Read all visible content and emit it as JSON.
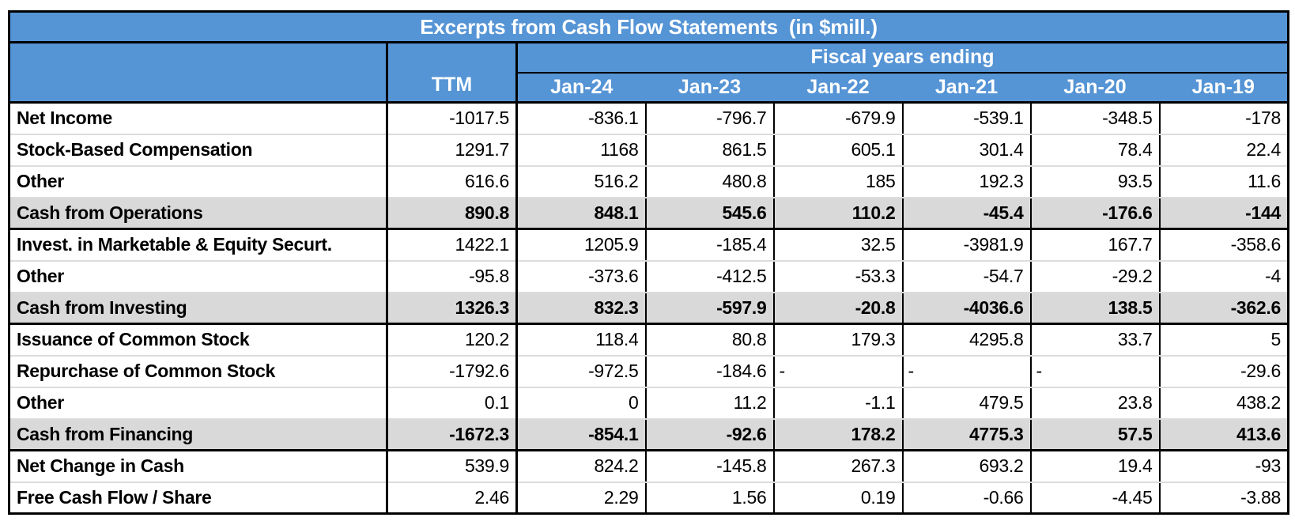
{
  "chart_data": {
    "type": "table",
    "title": "Excerpts from Cash Flow Statements  (in $mill.)",
    "column_group_label": "Fiscal years ending",
    "columns": [
      "",
      "TTM",
      "Jan-24",
      "Jan-23",
      "Jan-22",
      "Jan-21",
      "Jan-20",
      "Jan-19"
    ],
    "rows": [
      {
        "label": "Net Income",
        "values": [
          "-1017.5",
          "-836.1",
          "-796.7",
          "-679.9",
          "-539.1",
          "-348.5",
          "-178"
        ],
        "style": "normal"
      },
      {
        "label": "Stock-Based Compensation",
        "values": [
          "1291.7",
          "1168",
          "861.5",
          "605.1",
          "301.4",
          "78.4",
          "22.4"
        ],
        "style": "normal"
      },
      {
        "label": "Other",
        "values": [
          "616.6",
          "516.2",
          "480.8",
          "185",
          "192.3",
          "93.5",
          "11.6"
        ],
        "style": "normal"
      },
      {
        "label": "Cash from Operations",
        "values": [
          "890.8",
          "848.1",
          "545.6",
          "110.2",
          "-45.4",
          "-176.6",
          "-144"
        ],
        "style": "summary"
      },
      {
        "label": "Invest. in Marketable & Equity Securt.",
        "values": [
          "1422.1",
          "1205.9",
          "-185.4",
          "32.5",
          "-3981.9",
          "167.7",
          "-358.6"
        ],
        "style": "normal"
      },
      {
        "label": "Other",
        "values": [
          "-95.8",
          "-373.6",
          "-412.5",
          "-53.3",
          "-54.7",
          "-29.2",
          "-4"
        ],
        "style": "normal"
      },
      {
        "label": "Cash from Investing",
        "values": [
          "1326.3",
          "832.3",
          "-597.9",
          "-20.8",
          "-4036.6",
          "138.5",
          "-362.6"
        ],
        "style": "summary"
      },
      {
        "label": "Issuance of Common Stock",
        "values": [
          "120.2",
          "118.4",
          "80.8",
          "179.3",
          "4295.8",
          "33.7",
          "5"
        ],
        "style": "normal"
      },
      {
        "label": "Repurchase of Common Stock",
        "values": [
          "-1792.6",
          "-972.5",
          "-184.6",
          "-",
          "-",
          "-",
          "-29.6"
        ],
        "style": "normal"
      },
      {
        "label": "Other",
        "values": [
          "0.1",
          "0",
          "11.2",
          "-1.1",
          "479.5",
          "23.8",
          "438.2"
        ],
        "style": "normal"
      },
      {
        "label": "Cash from Financing",
        "values": [
          "-1672.3",
          "-854.1",
          "-92.6",
          "178.2",
          "4775.3",
          "57.5",
          "413.6"
        ],
        "style": "summary"
      },
      {
        "label": "Net Change in Cash",
        "values": [
          "539.9",
          "824.2",
          "-145.8",
          "267.3",
          "693.2",
          "19.4",
          "-93"
        ],
        "style": "normal"
      },
      {
        "label": "Free Cash Flow / Share",
        "values": [
          "2.46",
          "2.29",
          "1.56",
          "0.19",
          "-0.66",
          "-4.45",
          "-3.88"
        ],
        "style": "normal"
      }
    ]
  },
  "colors": {
    "header_blue": "#5594D5",
    "summary_gray": "#D9D9D9",
    "grid_black": "#000000",
    "row_divider": "#DCDCDC"
  }
}
